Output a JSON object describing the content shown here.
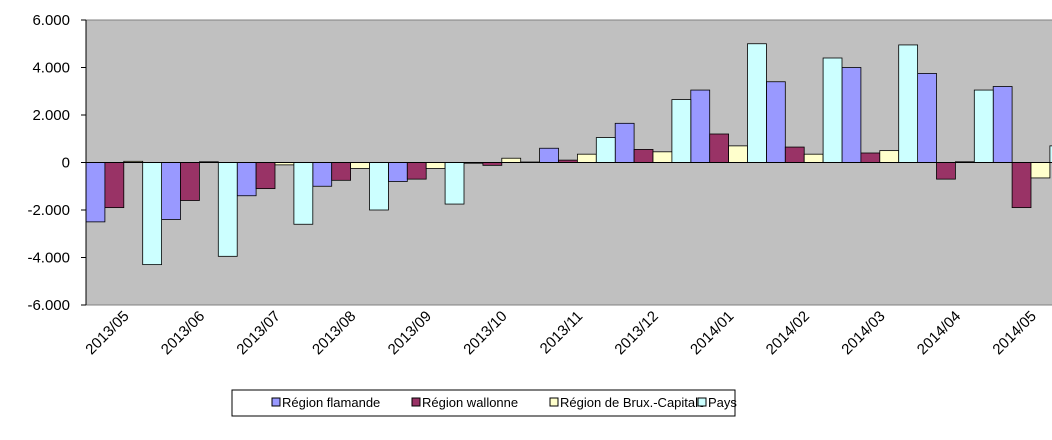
{
  "chart_data": {
    "type": "bar",
    "categories": [
      "2013/05",
      "2013/06",
      "2013/07",
      "2013/08",
      "2013/09",
      "2013/10",
      "2013/11",
      "2013/12",
      "2014/01",
      "2014/02",
      "2014/03",
      "2014/04",
      "2014/05"
    ],
    "series": [
      {
        "name": "Région flamande",
        "color": "#9999ff",
        "values": [
          -2500,
          -2400,
          -1400,
          -1000,
          -800,
          -30,
          600,
          1650,
          3050,
          3400,
          4000,
          3750,
          3200
        ]
      },
      {
        "name": "Région wallonne",
        "color": "#993366",
        "values": [
          -1900,
          -1600,
          -1100,
          -750,
          -700,
          -120,
          100,
          550,
          1200,
          650,
          400,
          -700,
          -1900
        ]
      },
      {
        "name": "Région de Brux.-Capitale",
        "color": "#ffffcc",
        "values": [
          50,
          30,
          -100,
          -250,
          -250,
          180,
          350,
          450,
          700,
          350,
          500,
          30,
          -650
        ]
      },
      {
        "name": "Pays",
        "color": "#ccffff",
        "values": [
          -4300,
          -3950,
          -2600,
          -2000,
          -1750,
          20,
          1050,
          2650,
          5000,
          4400,
          4950,
          3050,
          700
        ]
      }
    ],
    "ylim": [
      -6000,
      6000
    ],
    "yticks": [
      {
        "value": -6000,
        "label": "-6.000"
      },
      {
        "value": -4000,
        "label": "-4.000"
      },
      {
        "value": -2000,
        "label": "-2.000"
      },
      0,
      {
        "value": 2000,
        "label": "2.000"
      },
      {
        "value": 4000,
        "label": "4.000"
      },
      {
        "value": 6000,
        "label": "6.000"
      }
    ],
    "plot_background": "#c0c0c0"
  }
}
